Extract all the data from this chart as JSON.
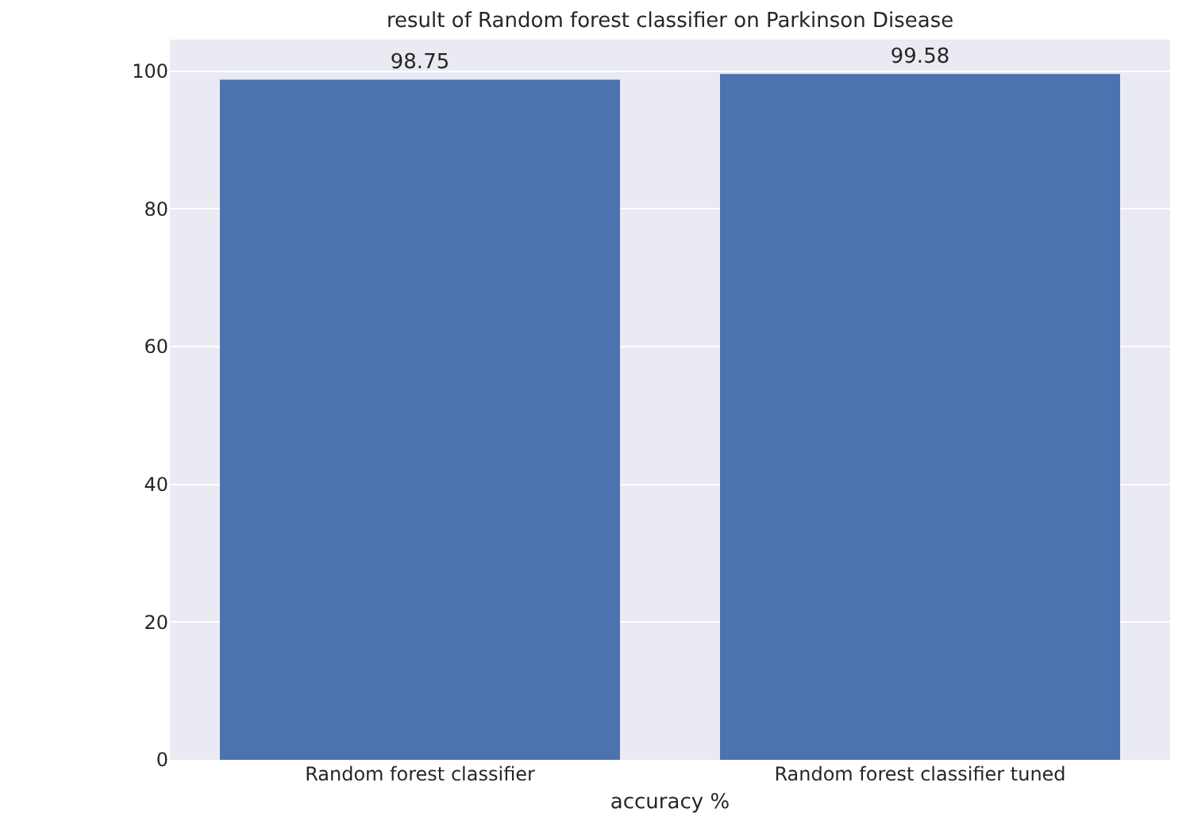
{
  "chart_data": {
    "type": "bar",
    "title": "result of Random forest classifier on Parkinson Disease",
    "xlabel": "accuracy %",
    "categories": [
      "Random forest classifier",
      "Random forest classifier tuned"
    ],
    "values": [
      98.75,
      99.58
    ],
    "color": "#4c72b0",
    "data_labels": true,
    "ylim": [
      0,
      104.56
    ],
    "yticks": [
      0,
      20,
      40,
      60,
      80,
      100
    ],
    "grid": "y"
  }
}
